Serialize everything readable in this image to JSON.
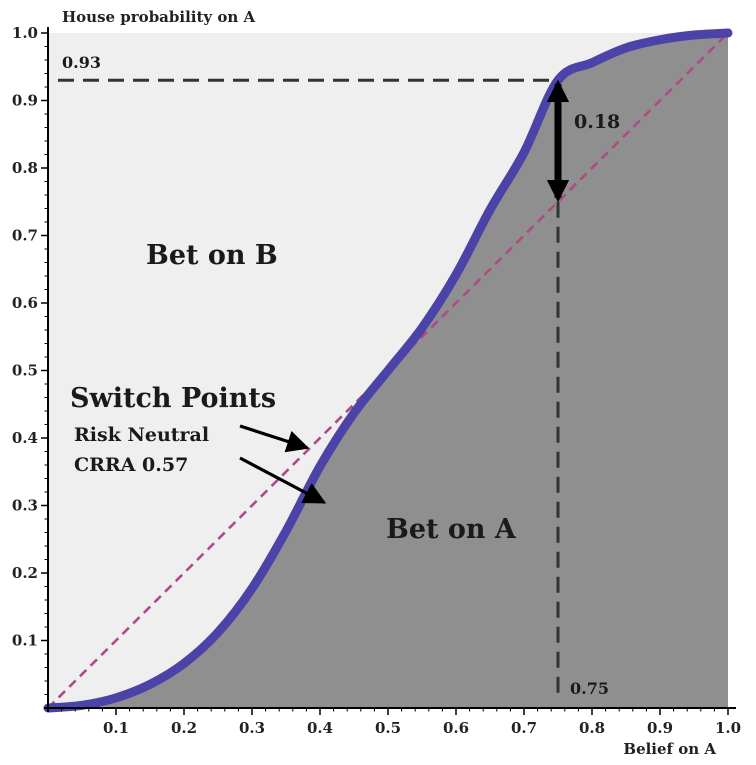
{
  "chart_data": {
    "type": "line",
    "title": "",
    "xlabel": "Belief on A",
    "ylabel": "House probability on A",
    "xlim": [
      0,
      1
    ],
    "ylim": [
      0,
      1
    ],
    "x_ticks": [
      "0.1",
      "0.2",
      "0.3",
      "0.4",
      "0.5",
      "0.6",
      "0.7",
      "0.8",
      "0.9",
      "1.0"
    ],
    "y_ticks": [
      "0.1",
      "0.2",
      "0.3",
      "0.4",
      "0.5",
      "0.6",
      "0.7",
      "0.8",
      "0.9",
      "1.0"
    ],
    "grid": false,
    "series": [
      {
        "name": "Risk Neutral",
        "style": "dashed",
        "color": "#b04a86",
        "x": [
          0,
          1
        ],
        "y": [
          0,
          1
        ]
      },
      {
        "name": "CRRA 0.57",
        "style": "solid",
        "color": "#4b43a8",
        "x": [
          0,
          0.05,
          0.1,
          0.15,
          0.2,
          0.25,
          0.3,
          0.35,
          0.4,
          0.45,
          0.5,
          0.55,
          0.6,
          0.65,
          0.7,
          0.75,
          0.8,
          0.85,
          0.9,
          0.95,
          1.0
        ],
        "y": [
          0,
          0.004,
          0.015,
          0.035,
          0.066,
          0.112,
          0.177,
          0.262,
          0.358,
          0.437,
          0.5,
          0.563,
          0.642,
          0.738,
          0.823,
          0.93,
          0.956,
          0.978,
          0.99,
          0.997,
          1.0
        ]
      }
    ],
    "regions": [
      {
        "label": "Bet on B",
        "color": "#efefef"
      },
      {
        "label": "Bet on A",
        "color": "#8f8f8f"
      }
    ],
    "annotations": {
      "switch_points_title": "Switch Points",
      "risk_neutral_label": "Risk Neutral",
      "crra_label": "CRRA 0.57",
      "gap_label": "0.18",
      "gap": {
        "x": 0.75,
        "y_low": 0.75,
        "y_high": 0.93
      },
      "hline": {
        "label": "0.93",
        "y": 0.93
      },
      "vline": {
        "label": "0.75",
        "x": 0.75
      },
      "risk_neutral_arrow_target": {
        "x": 0.39,
        "y": 0.39
      },
      "crra_arrow_target": {
        "x": 0.415,
        "y": 0.3
      }
    }
  }
}
